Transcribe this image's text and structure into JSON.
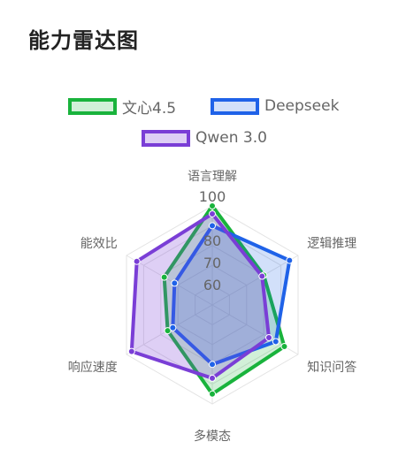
{
  "page": {
    "title": "能力雷达图"
  },
  "chart_data": {
    "type": "radar",
    "title": "能力雷达图",
    "axes": [
      "语言理解",
      "逻辑推理",
      "知识问答",
      "多模态",
      "响应速度",
      "能效比"
    ],
    "tick_labels": [
      "60",
      "70",
      "80",
      "100"
    ],
    "range": [
      50,
      100
    ],
    "grid": true,
    "legend_position": "top",
    "series": [
      {
        "name": "文心4.5",
        "color": "#19b33c",
        "fill": "rgba(25,179,60,0.20)",
        "values": [
          100,
          80,
          92,
          95,
          76,
          78
        ]
      },
      {
        "name": "Deepseek",
        "color": "#1f62e8",
        "fill": "rgba(31,98,232,0.20)",
        "values": [
          90,
          95,
          87,
          80,
          73,
          72
        ]
      },
      {
        "name": "Qwen 3.0",
        "color": "#7a3ed6",
        "fill": "rgba(122,62,214,0.25)",
        "values": [
          96,
          79,
          83,
          87,
          97,
          94
        ]
      }
    ]
  }
}
